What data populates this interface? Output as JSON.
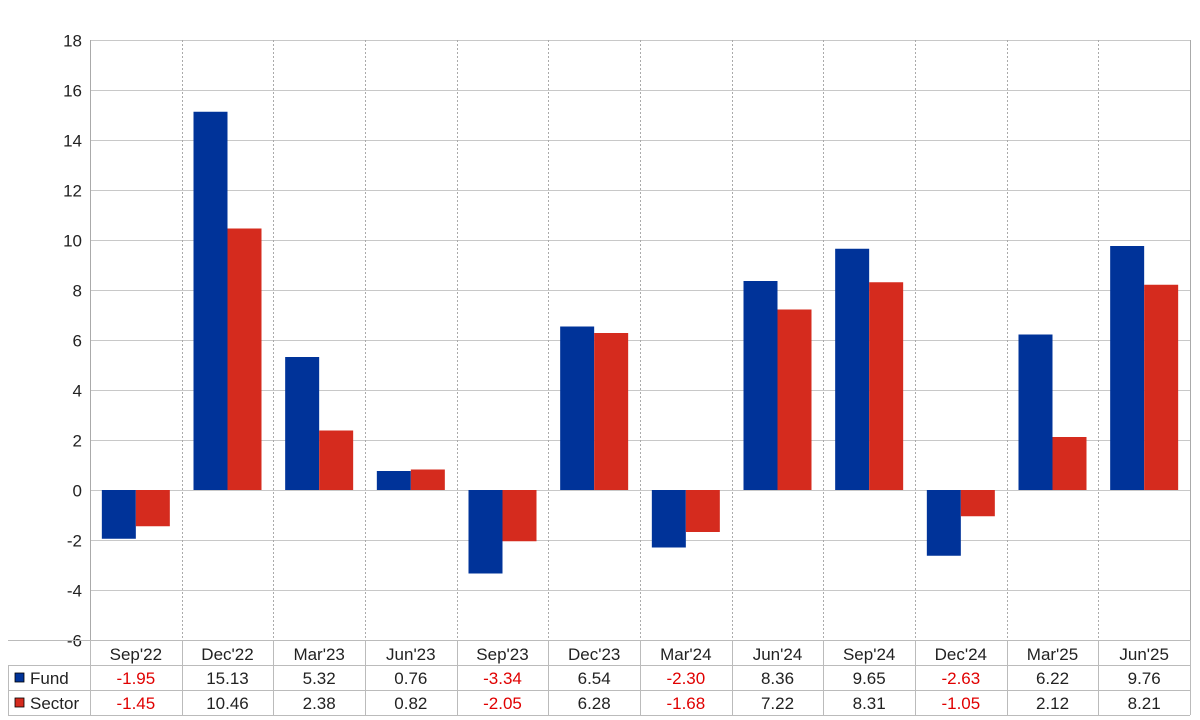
{
  "chart_data": {
    "type": "bar",
    "categories": [
      "Sep'22",
      "Dec'22",
      "Mar'23",
      "Jun'23",
      "Sep'23",
      "Dec'23",
      "Mar'24",
      "Jun'24",
      "Sep'24",
      "Dec'24",
      "Mar'25",
      "Jun'25"
    ],
    "series": [
      {
        "name": "Fund",
        "color": "#003399",
        "values": [
          -1.95,
          15.13,
          5.32,
          0.76,
          -3.34,
          6.54,
          -2.3,
          8.36,
          9.65,
          -2.63,
          6.22,
          9.76
        ],
        "labels": [
          "-1.95",
          "15.13",
          "5.32",
          "0.76",
          "-3.34",
          "6.54",
          "-2.30",
          "8.36",
          "9.65",
          "-2.63",
          "6.22",
          "9.76"
        ]
      },
      {
        "name": "Sector",
        "color": "#d52b1e",
        "values": [
          -1.45,
          10.46,
          2.38,
          0.82,
          -2.05,
          6.28,
          -1.68,
          7.22,
          8.31,
          -1.05,
          2.12,
          8.21
        ],
        "labels": [
          "-1.45",
          "10.46",
          "2.38",
          "0.82",
          "-2.05",
          "6.28",
          "-1.68",
          "7.22",
          "8.31",
          "-1.05",
          "2.12",
          "8.21"
        ]
      }
    ],
    "ylim": [
      -6,
      18
    ],
    "yticks": [
      "-6",
      "-4",
      "-2",
      "0",
      "2",
      "4",
      "6",
      "8",
      "10",
      "12",
      "14",
      "16",
      "18"
    ],
    "title": "",
    "xlabel": "",
    "ylabel": "",
    "grid": true,
    "legend": "data table below chart",
    "negative_label_color": "#e00000",
    "positive_label_color": "#222222"
  }
}
